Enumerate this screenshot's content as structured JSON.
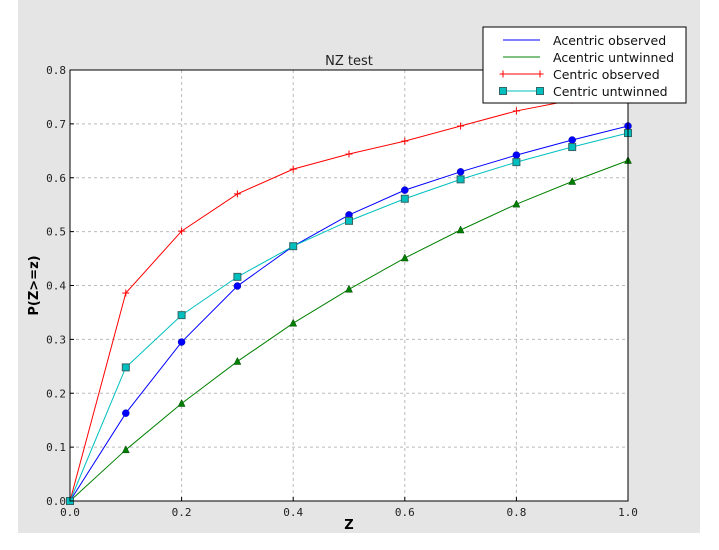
{
  "chart_data": {
    "type": "line",
    "title": "NZ test",
    "xlabel": "Z",
    "ylabel": "P(Z>=z)",
    "xlim": [
      0.0,
      1.0
    ],
    "ylim": [
      0.0,
      0.8
    ],
    "xticks": [
      "0.0",
      "0.2",
      "0.4",
      "0.6",
      "0.8",
      "1.0"
    ],
    "yticks": [
      "0.0",
      "0.1",
      "0.2",
      "0.3",
      "0.4",
      "0.5",
      "0.6",
      "0.7",
      "0.8"
    ],
    "grid": true,
    "legend_placement": "top-right",
    "x": [
      0.0,
      0.1,
      0.2,
      0.3,
      0.4,
      0.5,
      0.6,
      0.7,
      0.8,
      0.9,
      1.0
    ],
    "series": [
      {
        "name": "Acentric observed",
        "color": "#0000ff",
        "marker": "circle",
        "values": [
          0.0,
          0.163,
          0.295,
          0.399,
          0.473,
          0.531,
          0.577,
          0.611,
          0.642,
          0.67,
          0.696
        ]
      },
      {
        "name": "Acentric untwinned",
        "color": "#008000",
        "marker": "triangle",
        "values": [
          0.0,
          0.095,
          0.181,
          0.259,
          0.33,
          0.393,
          0.451,
          0.503,
          0.551,
          0.593,
          0.632
        ]
      },
      {
        "name": "Centric observed",
        "color": "#ff0000",
        "marker": "plus",
        "values": [
          0.0,
          0.386,
          0.501,
          0.57,
          0.616,
          0.644,
          0.668,
          0.696,
          0.724,
          0.744,
          0.762
        ]
      },
      {
        "name": "Centric untwinned",
        "color": "#00bfbf",
        "marker": "square",
        "values": [
          0.0,
          0.248,
          0.345,
          0.416,
          0.473,
          0.52,
          0.561,
          0.597,
          0.629,
          0.657,
          0.683
        ]
      }
    ]
  }
}
